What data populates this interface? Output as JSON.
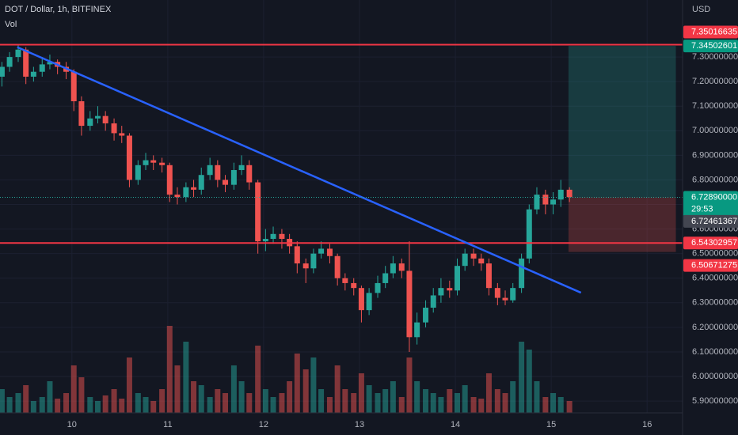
{
  "chart_data": {
    "type": "candlestick",
    "title": "DOT / Dollar, 1h, BITFINEX",
    "volume_label": "Vol",
    "currency": "USD",
    "up_color": "#26a69a",
    "down_color": "#ef5350",
    "x": [
      9.27,
      9.35,
      9.44,
      9.52,
      9.6,
      9.69,
      9.77,
      9.85,
      9.94,
      10.02,
      10.1,
      10.19,
      10.27,
      10.35,
      10.44,
      10.52,
      10.6,
      10.69,
      10.77,
      10.85,
      10.94,
      11.02,
      11.1,
      11.19,
      11.27,
      11.35,
      11.44,
      11.52,
      11.6,
      11.69,
      11.77,
      11.85,
      11.94,
      12.02,
      12.1,
      12.19,
      12.27,
      12.35,
      12.44,
      12.52,
      12.6,
      12.69,
      12.77,
      12.85,
      12.94,
      13.02,
      13.1,
      13.19,
      13.27,
      13.35,
      13.44,
      13.52,
      13.6,
      13.69,
      13.77,
      13.85,
      13.94,
      14.02,
      14.1,
      14.19,
      14.27,
      14.35,
      14.44,
      14.52,
      14.6,
      14.69,
      14.77,
      14.85,
      14.94,
      15.02,
      15.1,
      15.19
    ],
    "open": [
      7.22,
      7.26,
      7.3,
      7.33,
      7.22,
      7.24,
      7.27,
      7.28,
      7.26,
      7.24,
      7.12,
      7.02,
      7.05,
      7.06,
      7.03,
      6.99,
      6.98,
      6.8,
      6.86,
      6.88,
      6.87,
      6.86,
      6.74,
      6.73,
      6.77,
      6.76,
      6.82,
      6.86,
      6.8,
      6.78,
      6.84,
      6.86,
      6.79,
      6.55,
      6.56,
      6.58,
      6.56,
      6.53,
      6.46,
      6.44,
      6.5,
      6.52,
      6.49,
      6.4,
      6.38,
      6.36,
      6.27,
      6.34,
      6.38,
      6.42,
      6.46,
      6.43,
      6.16,
      6.22,
      6.28,
      6.33,
      6.36,
      6.35,
      6.45,
      6.5,
      6.48,
      6.46,
      6.36,
      6.32,
      6.31,
      6.36,
      6.48,
      6.68,
      6.74,
      6.7,
      6.72,
      6.76
    ],
    "high": [
      7.28,
      7.32,
      7.35,
      7.34,
      7.26,
      7.3,
      7.31,
      7.29,
      7.28,
      7.25,
      7.14,
      7.08,
      7.1,
      7.08,
      7.05,
      7.02,
      6.99,
      6.88,
      6.91,
      6.9,
      6.89,
      6.87,
      6.77,
      6.79,
      6.8,
      6.85,
      6.89,
      6.88,
      6.82,
      6.87,
      6.9,
      6.88,
      6.8,
      6.6,
      6.61,
      6.6,
      6.58,
      6.55,
      6.48,
      6.52,
      6.55,
      6.54,
      6.5,
      6.42,
      6.4,
      6.37,
      6.36,
      6.41,
      6.45,
      6.49,
      6.48,
      6.55,
      6.26,
      6.31,
      6.36,
      6.4,
      6.39,
      6.48,
      6.52,
      6.52,
      6.5,
      6.48,
      6.38,
      6.35,
      6.38,
      6.5,
      6.7,
      6.77,
      6.76,
      6.75,
      6.8,
      6.77
    ],
    "low": [
      7.18,
      7.24,
      7.28,
      7.19,
      7.2,
      7.22,
      7.25,
      7.23,
      7.21,
      7.08,
      6.98,
      7.0,
      7.03,
      7.0,
      6.96,
      6.95,
      6.77,
      6.78,
      6.84,
      6.84,
      6.83,
      6.71,
      6.7,
      6.71,
      6.73,
      6.74,
      6.8,
      6.77,
      6.75,
      6.76,
      6.82,
      6.76,
      6.5,
      6.51,
      6.54,
      6.52,
      6.5,
      6.42,
      6.38,
      6.42,
      6.48,
      6.46,
      6.37,
      6.35,
      6.33,
      6.22,
      6.25,
      6.32,
      6.36,
      6.4,
      6.4,
      6.1,
      6.13,
      6.2,
      6.26,
      6.3,
      6.32,
      6.33,
      6.43,
      6.45,
      6.43,
      6.33,
      6.29,
      6.29,
      6.3,
      6.34,
      6.46,
      6.66,
      6.66,
      6.66,
      6.69,
      6.71
    ],
    "close": [
      7.26,
      7.3,
      7.33,
      7.22,
      7.24,
      7.27,
      7.28,
      7.26,
      7.24,
      7.12,
      7.02,
      7.05,
      7.06,
      7.03,
      6.99,
      6.98,
      6.8,
      6.86,
      6.88,
      6.87,
      6.86,
      6.74,
      6.73,
      6.77,
      6.76,
      6.82,
      6.86,
      6.8,
      6.78,
      6.84,
      6.86,
      6.79,
      6.55,
      6.56,
      6.58,
      6.56,
      6.53,
      6.46,
      6.44,
      6.5,
      6.52,
      6.49,
      6.4,
      6.38,
      6.36,
      6.27,
      6.34,
      6.38,
      6.42,
      6.46,
      6.43,
      6.16,
      6.22,
      6.28,
      6.33,
      6.36,
      6.35,
      6.45,
      6.5,
      6.48,
      6.46,
      6.36,
      6.32,
      6.31,
      6.36,
      6.48,
      6.68,
      6.74,
      6.7,
      6.72,
      6.76,
      6.73
    ],
    "volume": [
      30,
      20,
      25,
      35,
      15,
      20,
      40,
      18,
      25,
      60,
      45,
      20,
      15,
      22,
      30,
      18,
      70,
      25,
      20,
      15,
      30,
      110,
      60,
      90,
      40,
      35,
      20,
      30,
      25,
      60,
      40,
      25,
      85,
      30,
      20,
      25,
      40,
      75,
      55,
      70,
      30,
      20,
      60,
      30,
      25,
      50,
      35,
      25,
      30,
      40,
      20,
      70,
      40,
      30,
      25,
      20,
      30,
      25,
      35,
      20,
      18,
      50,
      30,
      25,
      40,
      90,
      80,
      40,
      20,
      25,
      20,
      15
    ],
    "xlim": [
      9.25,
      16.37
    ],
    "xticks": [
      10,
      11,
      12,
      13,
      14,
      15,
      16
    ],
    "ylim": [
      5.852,
      7.532
    ],
    "yticks": [
      {
        "value": 5.9,
        "label": "5.90000000"
      },
      {
        "value": 6.0,
        "label": "6.00000000"
      },
      {
        "value": 6.1,
        "label": "6.10000000"
      },
      {
        "value": 6.2,
        "label": "6.20000000"
      },
      {
        "value": 6.3,
        "label": "6.30000000"
      },
      {
        "value": 6.4,
        "label": "6.40000000"
      },
      {
        "value": 6.5,
        "label": "6.50000000"
      },
      {
        "value": 6.6,
        "label": "6.60000000"
      },
      {
        "value": 6.7,
        "label": "6.70000000"
      },
      {
        "value": 6.8,
        "label": "6.80000000"
      },
      {
        "value": 6.9,
        "label": "6.90000000"
      },
      {
        "value": 7.0,
        "label": "7.00000000"
      },
      {
        "value": 7.1,
        "label": "7.10000000"
      },
      {
        "value": 7.2,
        "label": "7.20000000"
      },
      {
        "value": 7.3,
        "label": "7.30000000"
      }
    ],
    "price_lines": [
      {
        "value": 7.35016635,
        "label": "7.35016635",
        "color": "#f23645"
      },
      {
        "value": 6.54302957,
        "label": "6.54302957",
        "color": "#f23645"
      }
    ],
    "trend_line": {
      "x": [
        9.43,
        15.31
      ],
      "y": [
        7.34,
        6.341
      ],
      "color": "#2962ff"
    },
    "position": {
      "x": [
        15.18,
        16.3
      ],
      "target": {
        "value": 7.34502601,
        "label": "7.34502601"
      },
      "entry": 6.7289,
      "stop": {
        "value": 6.50671275,
        "label": "6.50671275"
      }
    },
    "last_price": {
      "value": 6.7289,
      "label": "6.72890000",
      "countdown": "29:53"
    },
    "cursor_price": {
      "value": 6.72461367,
      "label": "6.72461367"
    }
  }
}
